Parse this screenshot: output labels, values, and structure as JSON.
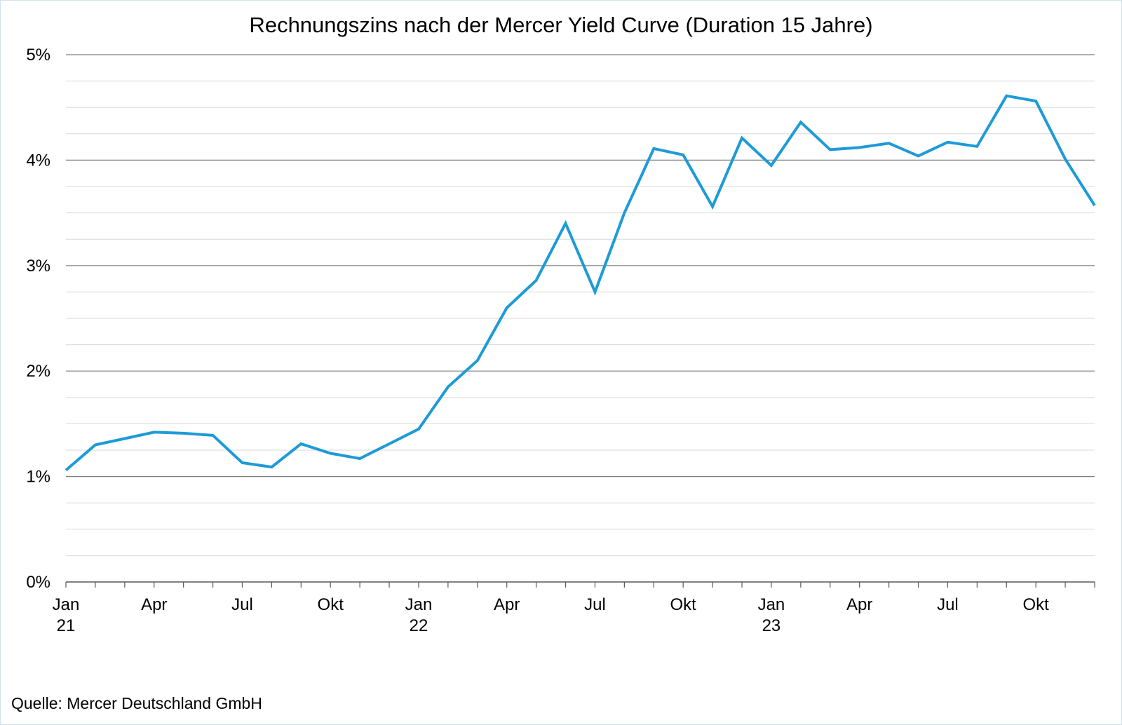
{
  "title": "Rechnungszins nach der Mercer Yield Curve (Duration 15 Jahre)",
  "source": "Quelle: Mercer Deutschland GmbH",
  "colors": {
    "line": "#1e9bd7",
    "major_grid": "#7f7f7f",
    "minor_grid": "#d9d9d9"
  },
  "chart_data": {
    "type": "line",
    "title": "Rechnungszins nach der Mercer Yield Curve (Duration 15 Jahre)",
    "xlabel": "",
    "ylabel": "",
    "ylim": [
      0,
      5
    ],
    "y_unit": "%",
    "y_ticks": [
      "0%",
      "1%",
      "2%",
      "3%",
      "4%",
      "5%"
    ],
    "x_ticks": [
      {
        "label": "Jan",
        "sub": "21"
      },
      {
        "label": "Apr",
        "sub": ""
      },
      {
        "label": "Jul",
        "sub": ""
      },
      {
        "label": "Okt",
        "sub": ""
      },
      {
        "label": "Jan",
        "sub": "22"
      },
      {
        "label": "Apr",
        "sub": ""
      },
      {
        "label": "Jul",
        "sub": ""
      },
      {
        "label": "Okt",
        "sub": ""
      },
      {
        "label": "Jan",
        "sub": "23"
      },
      {
        "label": "Apr",
        "sub": ""
      },
      {
        "label": "Jul",
        "sub": ""
      },
      {
        "label": "Okt",
        "sub": ""
      }
    ],
    "grid": true,
    "x": [
      "2021-01",
      "2021-02",
      "2021-03",
      "2021-04",
      "2021-05",
      "2021-06",
      "2021-07",
      "2021-08",
      "2021-09",
      "2021-10",
      "2021-11",
      "2021-12",
      "2022-01",
      "2022-02",
      "2022-03",
      "2022-04",
      "2022-05",
      "2022-06",
      "2022-07",
      "2022-08",
      "2022-09",
      "2022-10",
      "2022-11",
      "2022-12",
      "2023-01",
      "2023-02",
      "2023-03",
      "2023-04",
      "2023-05",
      "2023-06",
      "2023-07",
      "2023-08",
      "2023-09",
      "2023-10",
      "2023-11",
      "2023-12"
    ],
    "series": [
      {
        "values": [
          1.06,
          1.3,
          1.36,
          1.42,
          1.41,
          1.39,
          1.13,
          1.09,
          1.31,
          1.22,
          1.17,
          1.31,
          1.45,
          1.85,
          2.1,
          2.6,
          2.86,
          3.4,
          2.75,
          3.5,
          4.11,
          4.05,
          3.56,
          4.21,
          3.95,
          4.36,
          4.1,
          4.12,
          4.16,
          4.04,
          4.17,
          4.13,
          4.61,
          4.56,
          4.01,
          3.57
        ]
      }
    ]
  }
}
